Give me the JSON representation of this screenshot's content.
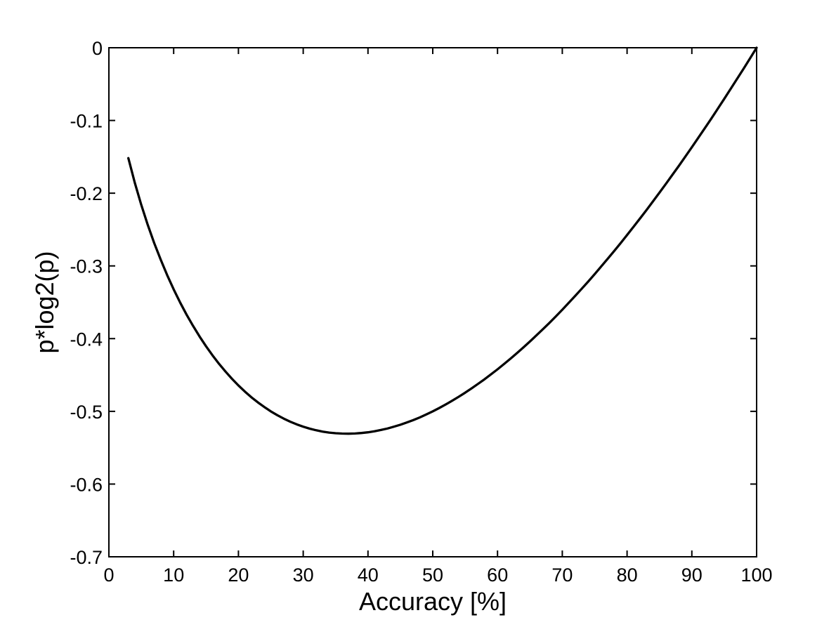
{
  "figure": {
    "background_color": "#ffffff",
    "axis_color": "#000000",
    "line_color": "#000000"
  },
  "chart_data": {
    "type": "line",
    "title": "",
    "xlabel": "Accuracy [%]",
    "ylabel": "p*log2(p)",
    "xlim": [
      0,
      100
    ],
    "ylim": [
      -0.7,
      0
    ],
    "xticks": [
      0,
      10,
      20,
      30,
      40,
      50,
      60,
      70,
      80,
      90,
      100
    ],
    "yticks": [
      0,
      -0.1,
      -0.2,
      -0.3,
      -0.4,
      -0.5,
      -0.6,
      -0.7
    ],
    "grid": false,
    "legend_position": "none",
    "box": true,
    "series": [
      {
        "name": "p*log2(p)",
        "line_width": 3.3,
        "color": "#000000",
        "x": [
          3,
          4,
          5,
          6,
          7,
          8,
          9,
          10,
          11,
          12,
          13,
          14,
          15,
          16,
          17,
          18,
          19,
          20,
          21,
          22,
          23,
          24,
          25,
          26,
          27,
          28,
          29,
          30,
          31,
          32,
          33,
          34,
          35,
          36,
          37,
          38,
          39,
          40,
          41,
          42,
          43,
          44,
          45,
          46,
          47,
          48,
          49,
          50,
          51,
          52,
          53,
          54,
          55,
          56,
          57,
          58,
          59,
          60,
          61,
          62,
          63,
          64,
          65,
          66,
          67,
          68,
          69,
          70,
          71,
          72,
          73,
          74,
          75,
          76,
          77,
          78,
          79,
          80,
          81,
          82,
          83,
          84,
          85,
          86,
          87,
          88,
          89,
          90,
          91,
          92,
          93,
          94,
          95,
          96,
          97,
          98,
          99,
          100
        ],
        "y": [
          -0.1518,
          -0.1858,
          -0.2161,
          -0.2435,
          -0.2686,
          -0.2915,
          -0.3127,
          -0.3322,
          -0.3503,
          -0.3671,
          -0.3826,
          -0.3971,
          -0.4105,
          -0.423,
          -0.4346,
          -0.4453,
          -0.4552,
          -0.4644,
          -0.4728,
          -0.4806,
          -0.4877,
          -0.4941,
          -0.5,
          -0.5053,
          -0.51,
          -0.5142,
          -0.5179,
          -0.5211,
          -0.5238,
          -0.526,
          -0.5278,
          -0.5292,
          -0.5301,
          -0.5306,
          -0.5307,
          -0.5305,
          -0.5298,
          -0.5288,
          -0.5274,
          -0.5256,
          -0.5236,
          -0.5211,
          -0.5184,
          -0.5153,
          -0.512,
          -0.5083,
          -0.5043,
          -0.5,
          -0.4954,
          -0.4906,
          -0.4854,
          -0.48,
          -0.4744,
          -0.4684,
          -0.4622,
          -0.4558,
          -0.4491,
          -0.4422,
          -0.435,
          -0.4276,
          -0.4199,
          -0.4121,
          -0.404,
          -0.3956,
          -0.3871,
          -0.3784,
          -0.3694,
          -0.3602,
          -0.3508,
          -0.3412,
          -0.3314,
          -0.3215,
          -0.3113,
          -0.3009,
          -0.2903,
          -0.2796,
          -0.2687,
          -0.2575,
          -0.2462,
          -0.2348,
          -0.2231,
          -0.2113,
          -0.1993,
          -0.1871,
          -0.1748,
          -0.1623,
          -0.1496,
          -0.1368,
          -0.1238,
          -0.1107,
          -0.0974,
          -0.0839,
          -0.0703,
          -0.0565,
          -0.0426,
          -0.0286,
          -0.0144,
          0
        ]
      }
    ]
  }
}
